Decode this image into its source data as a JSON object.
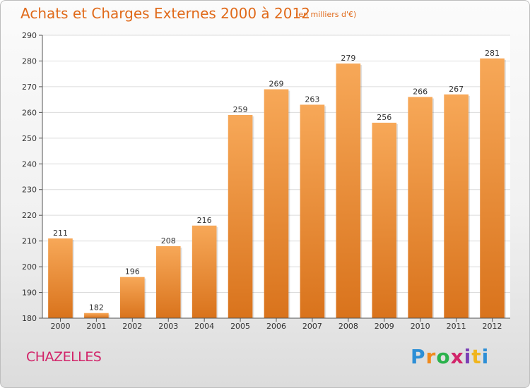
{
  "title": "Achats et Charges Externes 2000 à 2012",
  "subtitle": "(en milliers d'€)",
  "town": "CHAZELLES",
  "logo": {
    "letters": [
      "P",
      "r",
      "o",
      "x",
      "i",
      "t",
      "i"
    ]
  },
  "colors": {
    "bar_top": "#f7a858",
    "bar_bottom": "#d9731c",
    "title": "#e06a1a",
    "town": "#d2256a"
  },
  "chart_data": {
    "type": "bar",
    "categories": [
      "2000",
      "2001",
      "2002",
      "2003",
      "2004",
      "2005",
      "2006",
      "2007",
      "2008",
      "2009",
      "2010",
      "2011",
      "2012"
    ],
    "values": [
      211,
      182,
      196,
      208,
      216,
      259,
      269,
      263,
      279,
      256,
      266,
      267,
      281
    ],
    "ylim": [
      180,
      290
    ],
    "yticks": [
      180,
      190,
      200,
      210,
      220,
      230,
      240,
      250,
      260,
      270,
      280,
      290
    ],
    "grid": true
  }
}
